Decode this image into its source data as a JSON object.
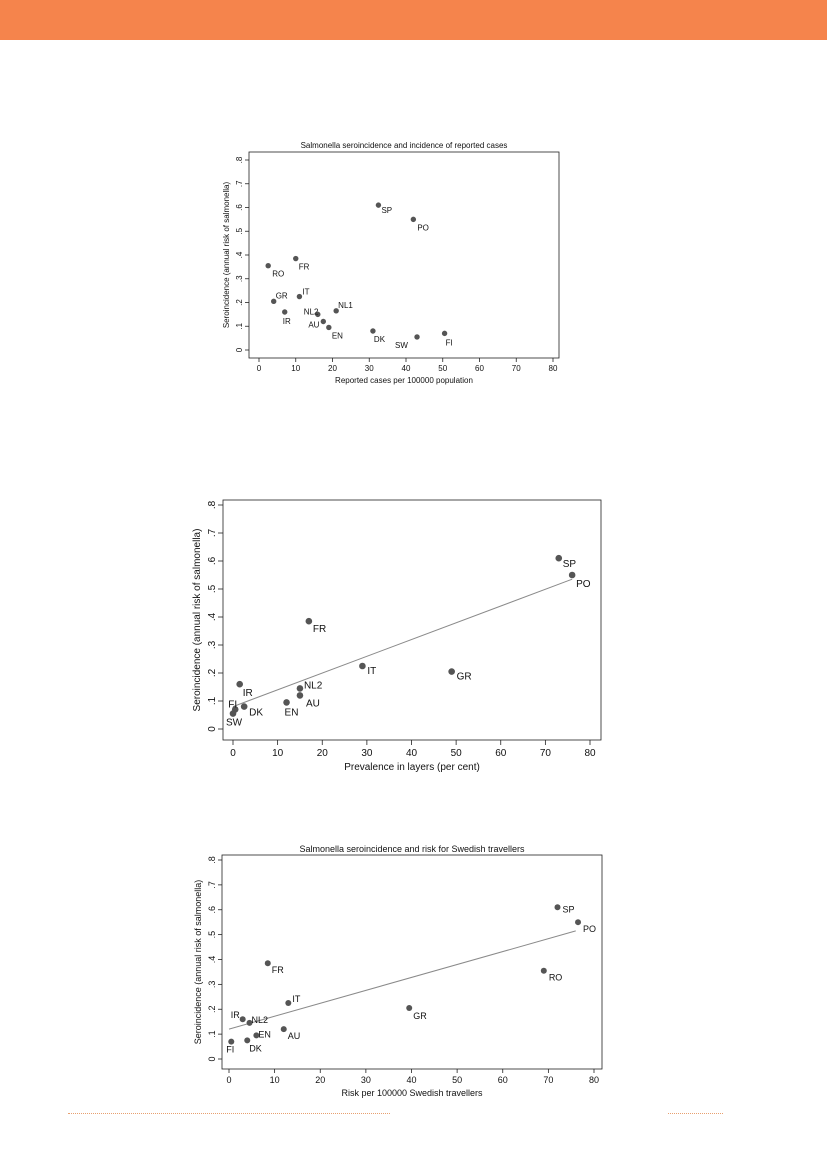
{
  "page": {
    "band_color": "#f5844c",
    "rule_color": "#e8a070"
  },
  "chart_data": [
    {
      "type": "scatter",
      "title": "Salmonella seroincidence and incidence of reported cases",
      "xlabel": "Reported cases per 100000 population",
      "ylabel": "Seroincidence (annual risk of salmonella)",
      "xlim": [
        0,
        80
      ],
      "ylim": [
        0,
        0.8
      ],
      "xticks": [
        0,
        10,
        20,
        30,
        40,
        50,
        60,
        70,
        80
      ],
      "yticks": [
        0,
        0.1,
        0.2,
        0.3,
        0.4,
        0.5,
        0.6,
        0.7,
        0.8
      ],
      "ytick_labels": [
        "0",
        ".1",
        ".2",
        ".3",
        ".4",
        ".5",
        ".6",
        ".7",
        ".8"
      ],
      "grid": false,
      "fit_line": null,
      "points": [
        {
          "label": "SP",
          "x": 32.5,
          "y": 0.61
        },
        {
          "label": "PO",
          "x": 42,
          "y": 0.55
        },
        {
          "label": "FR",
          "x": 10,
          "y": 0.385
        },
        {
          "label": "RO",
          "x": 2.5,
          "y": 0.355
        },
        {
          "label": "IT",
          "x": 11,
          "y": 0.225
        },
        {
          "label": "GR",
          "x": 4,
          "y": 0.205
        },
        {
          "label": "IR",
          "x": 7,
          "y": 0.16
        },
        {
          "label": "NL1",
          "x": 21,
          "y": 0.165
        },
        {
          "label": "NL2",
          "x": 16,
          "y": 0.15
        },
        {
          "label": "AU",
          "x": 17.5,
          "y": 0.12
        },
        {
          "label": "EN",
          "x": 19,
          "y": 0.095
        },
        {
          "label": "DK",
          "x": 31,
          "y": 0.08
        },
        {
          "label": "SW",
          "x": 43,
          "y": 0.055
        },
        {
          "label": "FI",
          "x": 50.5,
          "y": 0.07
        }
      ]
    },
    {
      "type": "scatter",
      "title": "",
      "xlabel": "Prevalence in layers (per cent)",
      "ylabel": "Seroincidence (annual risk of salmonella)",
      "xlim": [
        0,
        80
      ],
      "ylim": [
        0,
        0.8
      ],
      "xticks": [
        0,
        10,
        20,
        30,
        40,
        50,
        60,
        70,
        80
      ],
      "yticks": [
        0,
        0.1,
        0.2,
        0.3,
        0.4,
        0.5,
        0.6,
        0.7,
        0.8
      ],
      "ytick_labels": [
        "0",
        ".1",
        ".2",
        ".3",
        ".4",
        ".5",
        ".6",
        ".7",
        ".8"
      ],
      "grid": false,
      "fit_line": {
        "x": [
          0,
          76
        ],
        "y": [
          0.08,
          0.535
        ]
      },
      "points": [
        {
          "label": "SP",
          "x": 73,
          "y": 0.61
        },
        {
          "label": "PO",
          "x": 76,
          "y": 0.55
        },
        {
          "label": "FR",
          "x": 17,
          "y": 0.385
        },
        {
          "label": "IT",
          "x": 29,
          "y": 0.225
        },
        {
          "label": "GR",
          "x": 49,
          "y": 0.205
        },
        {
          "label": "IR",
          "x": 1.5,
          "y": 0.16
        },
        {
          "label": "NL2",
          "x": 15,
          "y": 0.145
        },
        {
          "label": "AU",
          "x": 15,
          "y": 0.12
        },
        {
          "label": "EN",
          "x": 12,
          "y": 0.095
        },
        {
          "label": "FI",
          "x": 0.5,
          "y": 0.07
        },
        {
          "label": "DK",
          "x": 2.5,
          "y": 0.08
        },
        {
          "label": "SW",
          "x": 0,
          "y": 0.055
        }
      ]
    },
    {
      "type": "scatter",
      "title": "Salmonella seroincidence and risk for Swedish travellers",
      "xlabel": "Risk per 100000 Swedish travellers",
      "ylabel": "Seroincidence (annual risk of salmonella)",
      "xlim": [
        0,
        80
      ],
      "ylim": [
        0,
        0.8
      ],
      "xticks": [
        0,
        10,
        20,
        30,
        40,
        50,
        60,
        70,
        80
      ],
      "yticks": [
        0,
        0.1,
        0.2,
        0.3,
        0.4,
        0.5,
        0.6,
        0.7,
        0.8
      ],
      "ytick_labels": [
        "0",
        ".1",
        ".2",
        ".3",
        ".4",
        ".5",
        ".6",
        ".7",
        ".8"
      ],
      "grid": false,
      "fit_line": {
        "x": [
          0,
          76
        ],
        "y": [
          0.12,
          0.515
        ]
      },
      "points": [
        {
          "label": "SP",
          "x": 72,
          "y": 0.61
        },
        {
          "label": "PO",
          "x": 76.5,
          "y": 0.55
        },
        {
          "label": "RO",
          "x": 69,
          "y": 0.355
        },
        {
          "label": "FR",
          "x": 8.5,
          "y": 0.385
        },
        {
          "label": "IT",
          "x": 13,
          "y": 0.225
        },
        {
          "label": "GR",
          "x": 39.5,
          "y": 0.205
        },
        {
          "label": "IR",
          "x": 3,
          "y": 0.16
        },
        {
          "label": "NL2",
          "x": 4.5,
          "y": 0.145
        },
        {
          "label": "AU",
          "x": 12,
          "y": 0.12
        },
        {
          "label": "EN",
          "x": 6,
          "y": 0.095
        },
        {
          "label": "DK",
          "x": 4,
          "y": 0.075
        },
        {
          "label": "FI",
          "x": 0.5,
          "y": 0.07
        }
      ]
    }
  ]
}
